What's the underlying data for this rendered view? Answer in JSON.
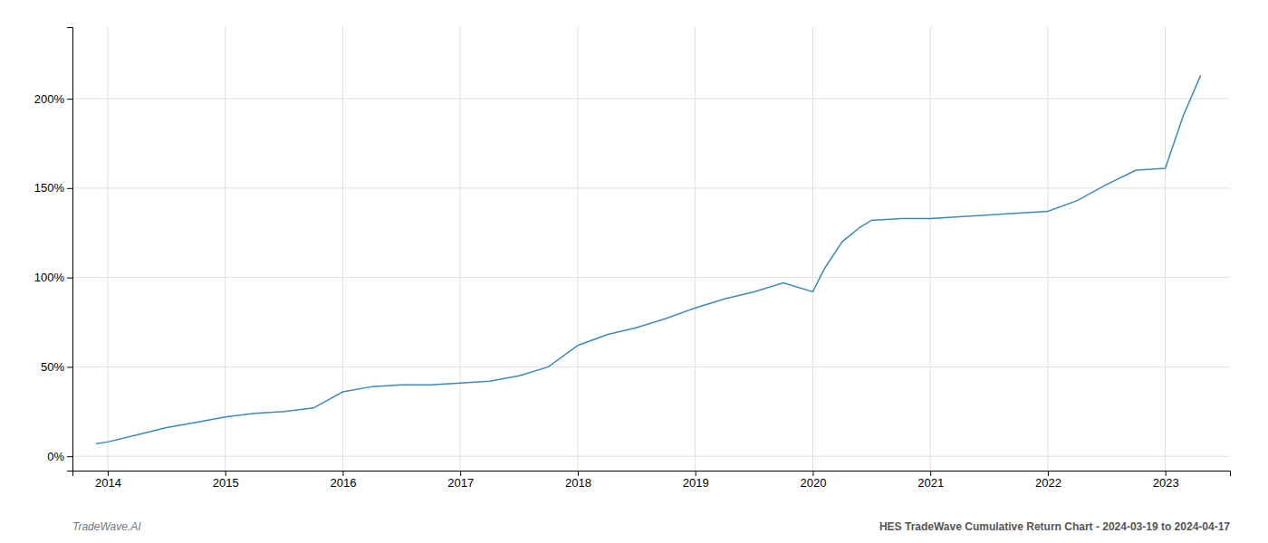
{
  "chart_data": {
    "type": "line",
    "title": "HES TradeWave Cumulative Return Chart - 2024-03-19 to 2024-04-17",
    "annotations": [
      "TradeWave.AI"
    ],
    "x": [
      2013.9,
      2014.0,
      2014.25,
      2014.5,
      2014.75,
      2015.0,
      2015.25,
      2015.5,
      2015.75,
      2016.0,
      2016.25,
      2016.5,
      2016.75,
      2017.0,
      2017.25,
      2017.5,
      2017.75,
      2018.0,
      2018.25,
      2018.5,
      2018.75,
      2019.0,
      2019.25,
      2019.5,
      2019.75,
      2020.0,
      2020.1,
      2020.25,
      2020.4,
      2020.5,
      2020.75,
      2021.0,
      2021.25,
      2021.5,
      2021.75,
      2022.0,
      2022.25,
      2022.5,
      2022.75,
      2023.0,
      2023.15,
      2023.3
    ],
    "values": [
      7,
      8,
      12,
      16,
      19,
      22,
      24,
      25,
      27,
      36,
      39,
      40,
      40,
      41,
      42,
      45,
      50,
      62,
      68,
      72,
      77,
      83,
      88,
      92,
      97,
      92,
      105,
      120,
      128,
      132,
      133,
      133,
      134,
      135,
      136,
      137,
      143,
      152,
      160,
      161,
      190,
      213
    ],
    "color": "#3a8abf",
    "xlim": [
      2013.7,
      2023.55
    ],
    "ylim": [
      -8,
      240
    ],
    "xticks": [
      2014,
      2015,
      2016,
      2017,
      2018,
      2019,
      2020,
      2021,
      2022,
      2023
    ],
    "yticks": [
      {
        "value": 0,
        "label": "0%"
      },
      {
        "value": 50,
        "label": "50%"
      },
      {
        "value": 100,
        "label": "100%"
      },
      {
        "value": 150,
        "label": "150%"
      },
      {
        "value": 200,
        "label": "200%"
      }
    ],
    "grid": true
  }
}
